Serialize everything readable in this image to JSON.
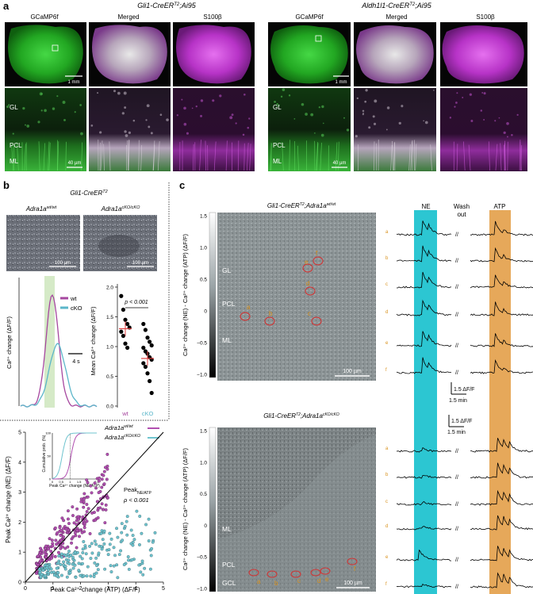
{
  "panel_a": {
    "letter": "a",
    "genotype_left": "Gli1-CreER",
    "genotype_left_sup": "T2",
    "genotype_left_tail": ";Ai95",
    "genotype_right": "Aldh1l1-CreER",
    "genotype_right_sup": "T2",
    "genotype_right_tail": ";Ai95",
    "col_labels": [
      "GCaMP6f",
      "Merged",
      "S100β"
    ],
    "layer_labels": [
      "GL",
      "PCL",
      "ML"
    ],
    "scale_low": "1 mm",
    "scale_high": "40 µm",
    "colors": {
      "green": "#2fc12f",
      "magenta": "#c43ad1",
      "dark": "#0b0b0b"
    }
  },
  "panel_b": {
    "letter": "b",
    "genotype": "Gli1-CreER",
    "genotype_sup": "T2",
    "wt_title": "Adra1a",
    "wt_sup": "wt/wt",
    "cko_title": "Adra1a",
    "cko_sup": "cKO/cKO",
    "scale": "100 µm",
    "trace_ylabel": "Ca²⁺ change (ΔF/F)",
    "time_scale": "4 s",
    "legend": [
      "wt",
      "cKO"
    ],
    "trace_colors": {
      "wt": "#a6479f",
      "cko": "#5bb6c9",
      "stim": "#cfe7c0"
    },
    "pvalue": "p < 0.001",
    "mean_ylabel": "Mean Ca²⁺ change (ΔF/F)"
  },
  "panel_c": {
    "letter": "c",
    "top_title": "Gli1-CreER",
    "top_sup1": "T2",
    "top_mid": ";Adra1a",
    "top_sup2": "wt/wt",
    "bot_title": "Gli1-CreER",
    "bot_sup1": "T2",
    "bot_mid": ";Adra1a",
    "bot_sup2": "cKO/cKO",
    "colorbar_label": "Ca²⁺ change (NE) - Ca²⁺ change (ATP) (ΔF/F)",
    "colorbar_ticks": [
      "1.5",
      "1.0",
      "0.5",
      "0",
      "−0.5",
      "−1.0"
    ],
    "layers_top": [
      "GL",
      "PCL",
      "ML"
    ],
    "layers_bottom": [
      "ML",
      "PCL",
      "GCL"
    ],
    "roi_letters": [
      "a",
      "b",
      "c",
      "d",
      "e",
      "f"
    ],
    "scale": "100 µm",
    "col_headers": [
      "NE",
      "Wash\nout",
      "ATP"
    ],
    "wash_line1": "Wash",
    "wash_line2": "out",
    "scalebar_dff": "1.5 ΔF/F",
    "scalebar_time": "1.5 min",
    "colors": {
      "ne": "#2cc6d2",
      "atp": "#e6a85a",
      "roi": "#d43030",
      "roi_label": "#d8901a"
    }
  },
  "panel_d": {
    "y_label": "Peak Ca²⁺ change (NE) (ΔF/F)",
    "x_label": "Peak Ca²⁺ change (ATP) (ΔF/F)",
    "legend_wt": "Adra1a",
    "legend_wt_sup": "wt/wt",
    "legend_cko": "Adra1a",
    "legend_cko_sup": "cKO/cKO",
    "stat_label": "Peak",
    "stat_sub": "NE/ATP",
    "stat_p": "ρ < 0.001",
    "inset_ylabel": "Cumulative prob. (%)",
    "inset_xlabel": "Peak Ca²⁺ change (NE/ATP)",
    "colors": {
      "wt": "#b14fb0",
      "cko": "#6fc4cf"
    }
  },
  "chart_data": [
    {
      "type": "line",
      "title": "",
      "ylabel": "Ca²⁺ change (ΔF/F)",
      "time_scale_bar_s": 4,
      "series": [
        {
          "name": "wt",
          "peak": 3.6,
          "shape": "fast transient"
        },
        {
          "name": "cKO",
          "peak": 2.0,
          "shape": "slower transient"
        }
      ]
    },
    {
      "type": "scatter",
      "title": "",
      "ylabel": "Mean Ca²⁺ change (ΔF/F)",
      "categories": [
        "wt",
        "cKO"
      ],
      "ylim": [
        0,
        2
      ],
      "yticks": [
        0,
        0.5,
        1.0,
        1.5,
        2.0
      ],
      "series": [
        {
          "name": "wt",
          "values": [
            1.85,
            1.62,
            1.45,
            1.38,
            1.32,
            1.25,
            1.18,
            1.05,
            0.98
          ],
          "mean": 1.3
        },
        {
          "name": "cKO",
          "values": [
            1.38,
            1.28,
            1.15,
            1.08,
            1.02,
            0.98,
            0.92,
            0.88,
            0.82,
            0.78,
            0.72,
            0.66,
            0.55,
            0.42,
            0.22
          ],
          "mean": 0.8
        }
      ],
      "annotation": "p < 0.001"
    },
    {
      "type": "scatter",
      "title": "",
      "xlabel": "Peak Ca²⁺ change (ATP) (ΔF/F)",
      "ylabel": "Peak Ca²⁺ change (NE) (ΔF/F)",
      "xlim": [
        0,
        5
      ],
      "ylim": [
        0,
        5
      ],
      "xticks": [
        0,
        1,
        2,
        3,
        4,
        5
      ],
      "yticks": [
        0,
        1,
        2,
        3,
        4,
        5
      ],
      "series": [
        {
          "name": "Adra1a wt/wt",
          "distribution": "cloud around identity line, NE ≈ ATP",
          "x_range": [
            0.2,
            3.3
          ],
          "y_range": [
            0.2,
            4.4
          ]
        },
        {
          "name": "Adra1a cKO/cKO",
          "distribution": "below identity line, NE < ATP",
          "x_range": [
            0.4,
            4.9
          ],
          "y_range": [
            0.1,
            2.6
          ]
        }
      ],
      "reference_line": "identity (y = x)",
      "annotation": "Peak NE/ATP ρ < 0.001"
    },
    {
      "type": "line",
      "title": "",
      "xlabel": "Peak Ca²⁺ change (NE/ATP)",
      "ylabel": "Cumulative prob. (%)",
      "xticks": [
        0,
        0.5,
        1.0,
        1.5,
        2.0,
        2.5
      ],
      "yticks": [
        0,
        50,
        100
      ],
      "series": [
        {
          "name": "Adra1a wt/wt",
          "median": 1.05
        },
        {
          "name": "Adra1a cKO/cKO",
          "median": 0.55
        }
      ]
    }
  ]
}
